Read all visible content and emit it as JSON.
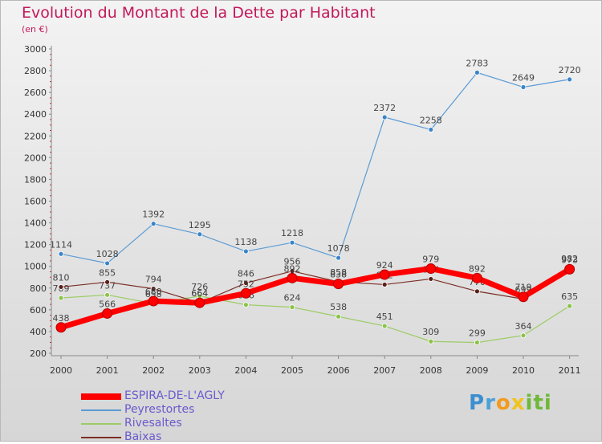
{
  "header": {
    "title": "Evolution du Montant de la Dette par Habitant",
    "subtitle": "(en €)"
  },
  "logo": {
    "text": "Proxiti"
  },
  "chart_data": {
    "type": "line",
    "title": "Evolution du Montant de la Dette par Habitant",
    "ylabel": "(en €)",
    "xlabel": "",
    "x": [
      "2000",
      "2001",
      "2002",
      "2003",
      "2004",
      "2005",
      "2006",
      "2007",
      "2008",
      "2009",
      "2010",
      "2011"
    ],
    "ylim": [
      200,
      3000
    ],
    "yticks": [
      200,
      400,
      600,
      800,
      1000,
      1200,
      1400,
      1600,
      1800,
      2000,
      2200,
      2400,
      2600,
      2800,
      3000
    ],
    "grid": false,
    "legend_position": "bottom-left",
    "series": [
      {
        "name": "ESPIRA-DE-L'AGLY",
        "color": "#ff0000",
        "values": [
          438,
          566,
          680,
          664,
          752,
          892,
          838,
          924,
          979,
          892,
          719,
          973
        ]
      },
      {
        "name": "Peyrestortes",
        "color": "#5b9bd5",
        "values": [
          1114,
          1028,
          1392,
          1295,
          1138,
          1218,
          1078,
          2372,
          2258,
          2783,
          2649,
          2720
        ]
      },
      {
        "name": "Rivesaltes",
        "color": "#9ccc65",
        "values": [
          709,
          737,
          658,
          726,
          646,
          624,
          538,
          451,
          309,
          299,
          364,
          635
        ]
      },
      {
        "name": "Baixas",
        "color": "#7b2d26",
        "values": [
          810,
          855,
          794,
          664,
          846,
          956,
          858,
          832,
          884,
          770,
          699,
          982
        ]
      }
    ]
  }
}
